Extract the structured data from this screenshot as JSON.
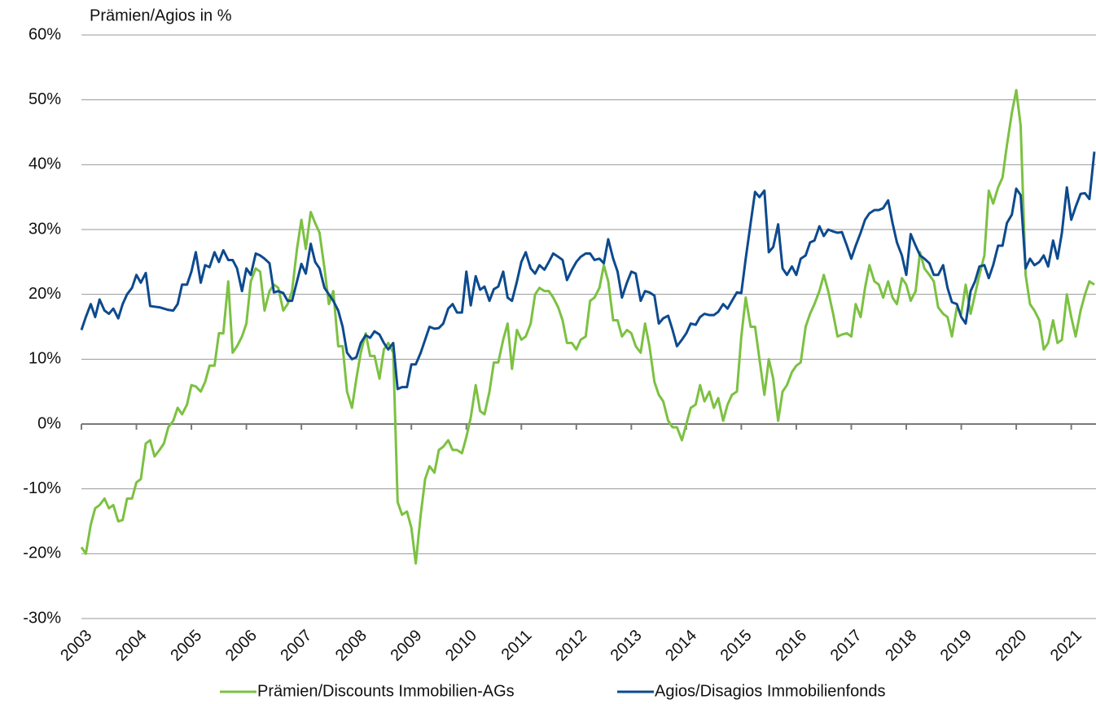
{
  "chart_data": {
    "type": "line",
    "title": "Prämien/Agios in %",
    "x": [
      2003,
      2003.08,
      2003.17,
      2003.25,
      2003.33,
      2003.42,
      2003.5,
      2003.58,
      2003.67,
      2003.75,
      2003.83,
      2003.92,
      2004,
      2004.08,
      2004.17,
      2004.25,
      2004.33,
      2004.42,
      2004.5,
      2004.58,
      2004.67,
      2004.75,
      2004.83,
      2004.92,
      2005,
      2005.08,
      2005.17,
      2005.25,
      2005.33,
      2005.42,
      2005.5,
      2005.58,
      2005.67,
      2005.75,
      2005.83,
      2005.92,
      2006,
      2006.08,
      2006.17,
      2006.25,
      2006.33,
      2006.42,
      2006.5,
      2006.58,
      2006.67,
      2006.75,
      2006.83,
      2006.92,
      2007,
      2007.08,
      2007.17,
      2007.25,
      2007.33,
      2007.42,
      2007.5,
      2007.58,
      2007.67,
      2007.75,
      2007.83,
      2007.92,
      2008,
      2008.08,
      2008.17,
      2008.25,
      2008.33,
      2008.42,
      2008.5,
      2008.58,
      2008.67,
      2008.75,
      2008.83,
      2008.92,
      2009,
      2009.08,
      2009.17,
      2009.25,
      2009.33,
      2009.42,
      2009.5,
      2009.58,
      2009.67,
      2009.75,
      2009.83,
      2009.92,
      2010,
      2010.08,
      2010.17,
      2010.25,
      2010.33,
      2010.42,
      2010.5,
      2010.58,
      2010.67,
      2010.75,
      2010.83,
      2010.92,
      2011,
      2011.08,
      2011.17,
      2011.25,
      2011.33,
      2011.42,
      2011.5,
      2011.58,
      2011.67,
      2011.75,
      2011.83,
      2011.92,
      2012,
      2012.08,
      2012.17,
      2012.25,
      2012.33,
      2012.42,
      2012.5,
      2012.58,
      2012.67,
      2012.75,
      2012.83,
      2012.92,
      2013,
      2013.08,
      2013.17,
      2013.25,
      2013.33,
      2013.42,
      2013.5,
      2013.58,
      2013.67,
      2013.75,
      2013.83,
      2013.92,
      2014,
      2014.08,
      2014.17,
      2014.25,
      2014.33,
      2014.42,
      2014.5,
      2014.58,
      2014.67,
      2014.75,
      2014.83,
      2014.92,
      2015,
      2015.08,
      2015.17,
      2015.25,
      2015.33,
      2015.42,
      2015.5,
      2015.58,
      2015.67,
      2015.75,
      2015.83,
      2015.92,
      2016,
      2016.08,
      2016.17,
      2016.25,
      2016.33,
      2016.42,
      2016.5,
      2016.58,
      2016.67,
      2016.75,
      2016.83,
      2016.92,
      2017,
      2017.08,
      2017.17,
      2017.25,
      2017.33,
      2017.42,
      2017.5,
      2017.58,
      2017.67,
      2017.75,
      2017.83,
      2017.92,
      2018,
      2018.08,
      2018.17,
      2018.25,
      2018.33,
      2018.42,
      2018.5,
      2018.58,
      2018.67,
      2018.75,
      2018.83,
      2018.92,
      2019,
      2019.08,
      2019.17,
      2019.25,
      2019.33,
      2019.42,
      2019.5,
      2019.58,
      2019.67,
      2019.75,
      2019.83,
      2019.92,
      2020,
      2020.08,
      2020.17,
      2020.25,
      2020.33,
      2020.42,
      2020.5,
      2020.58,
      2020.67,
      2020.75,
      2020.83,
      2020.92,
      2021,
      2021.08,
      2021.17,
      2021.25,
      2021.33,
      2021.42
    ],
    "series": [
      {
        "name": "Prämien/Discounts Immobilien-AGs",
        "color": "#7cc142",
        "values": [
          -19,
          -20,
          -15.5,
          -13,
          -12.5,
          -11.5,
          -13,
          -12.5,
          -15,
          -14.8,
          -11.5,
          -11.5,
          -9,
          -8.5,
          -3,
          -2.5,
          -5,
          -4,
          -3,
          -0.5,
          0.5,
          2.5,
          1.5,
          3,
          6,
          5.8,
          5,
          6.5,
          9,
          9,
          14,
          14,
          22,
          11,
          12,
          13.5,
          15.5,
          22,
          24,
          23.5,
          17.5,
          20.5,
          21.5,
          21,
          17.5,
          18.5,
          20.5,
          27,
          31.5,
          27,
          32.7,
          31,
          29.5,
          24,
          18.5,
          20.5,
          12,
          12,
          5,
          2.5,
          7,
          11,
          14,
          10.5,
          10.5,
          7,
          11.5,
          12.5,
          11,
          -12,
          -14,
          -13.5,
          -16,
          -21.5,
          -14,
          -8.5,
          -6.5,
          -7.5,
          -4,
          -3.5,
          -2.5,
          -4,
          -4,
          -4.5,
          -2,
          1,
          6,
          2,
          1.5,
          5,
          9.5,
          9.5,
          13,
          15.5,
          8.5,
          14.5,
          13,
          13.5,
          15.5,
          20,
          21,
          20.5,
          20.5,
          19.5,
          18,
          16,
          12.5,
          12.5,
          11.5,
          13,
          13.5,
          19,
          19.5,
          21,
          24.5,
          22,
          16,
          16,
          13.5,
          14.5,
          14,
          12,
          11,
          15.5,
          12,
          6.5,
          4.5,
          3.5,
          0.5,
          -0.5,
          -0.5,
          -2.5,
          0,
          2.5,
          3,
          6,
          3.5,
          5,
          2.5,
          4,
          0.5,
          3,
          4.5,
          5,
          13.5,
          19.5,
          15,
          15,
          10,
          4.5,
          10,
          7,
          0.5,
          5,
          6,
          8,
          9,
          9.5,
          15,
          17,
          18.5,
          20.5,
          23,
          20.5,
          17,
          13.5,
          13.8,
          14,
          13.5,
          18.5,
          16.5,
          21,
          24.5,
          22,
          21.5,
          19.5,
          22,
          19.5,
          18.5,
          22.5,
          21.5,
          19,
          20.5,
          26.5,
          24,
          23,
          22,
          18,
          17,
          16.5,
          13.5,
          18,
          17,
          21.5,
          17,
          20,
          23,
          26,
          36,
          34,
          36.5,
          38,
          43,
          48,
          51.5,
          46,
          23,
          18.5,
          17.5,
          16,
          11.5,
          12.5,
          16,
          12.5,
          13,
          20,
          16.5,
          13.5,
          17.5,
          20,
          22,
          21.5
        ]
      },
      {
        "name": "Agios/Disagios Immobilienfonds",
        "color": "#0d4a8e",
        "values": [
          14.5,
          16.5,
          18.5,
          16.5,
          19.2,
          17.5,
          17,
          17.8,
          16.3,
          18.5,
          20,
          21,
          23,
          21.8,
          23.3,
          18.2,
          18.1,
          18,
          17.8,
          17.6,
          17.5,
          18.5,
          21.5,
          21.5,
          23.5,
          26.5,
          21.8,
          24.5,
          24.2,
          26.5,
          25,
          26.8,
          25.3,
          25.3,
          24,
          20.5,
          24,
          23,
          26.3,
          26,
          25.5,
          24.8,
          20.3,
          20.5,
          20.2,
          19,
          19,
          22,
          24.7,
          23.2,
          27.8,
          25,
          24,
          21,
          20,
          19,
          17.5,
          15,
          11,
          10,
          10.3,
          12.5,
          13.7,
          13.3,
          14.3,
          13.8,
          12.5,
          11.5,
          12.5,
          5.4,
          5.7,
          5.7,
          9.2,
          9.2,
          11,
          13,
          15,
          14.7,
          14.8,
          15.5,
          17.8,
          18.5,
          17.2,
          17.2,
          23.5,
          18.3,
          22.8,
          20.7,
          21.2,
          19,
          20.8,
          21.2,
          23.5,
          19.5,
          19,
          22,
          25,
          26.5,
          24,
          23.2,
          24.5,
          23.8,
          25,
          26.3,
          25.8,
          25.3,
          22.2,
          23.8,
          25,
          25.8,
          26.3,
          26.3,
          25.3,
          25.5,
          24.8,
          28.5,
          25.5,
          23.5,
          19.5,
          21.8,
          23.5,
          23.2,
          19,
          20.5,
          20.3,
          19.8,
          15.5,
          16.3,
          16.7,
          14.5,
          12,
          13,
          14,
          15.5,
          15.3,
          16.5,
          17,
          16.8,
          16.8,
          17.3,
          18.5,
          17.8,
          19,
          20.3,
          20.2,
          25.5,
          31,
          35.8,
          35,
          36,
          26.5,
          27.3,
          30.8,
          24,
          23,
          24.3,
          23,
          25.5,
          26,
          28,
          28.3,
          30.5,
          29,
          30,
          29.7,
          29.5,
          29.6,
          27.5,
          25.5,
          27.5,
          29.5,
          31.5,
          32.5,
          33,
          33,
          33.3,
          34.5,
          31,
          28,
          26,
          23,
          29.3,
          27.5,
          26,
          25.5,
          24.8,
          23,
          23,
          24.5,
          21,
          18.8,
          18.5,
          16.5,
          15.5,
          20.5,
          22,
          24.3,
          24.5,
          22.5,
          24.5,
          27.5,
          27.5,
          31,
          32.3,
          36.3,
          35.3,
          24,
          25.5,
          24.5,
          25,
          26,
          24.3,
          28.3,
          25.5,
          29.5,
          36.5,
          31.5,
          33.5,
          35.5,
          35.6,
          34.7,
          42
        ]
      }
    ],
    "xlim": [
      2003,
      2021.45
    ],
    "xticks": [
      2003,
      2004,
      2005,
      2006,
      2007,
      2008,
      2009,
      2010,
      2011,
      2012,
      2013,
      2014,
      2015,
      2016,
      2017,
      2018,
      2019,
      2020,
      2021
    ],
    "ylim": [
      -30,
      60
    ],
    "yticks": [
      {
        "value": -30,
        "label": "-30%"
      },
      {
        "value": -20,
        "label": "-20%"
      },
      {
        "value": -10,
        "label": "-10%"
      },
      {
        "value": 0,
        "label": "0%"
      },
      {
        "value": 10,
        "label": "10%"
      },
      {
        "value": 20,
        "label": "20%"
      },
      {
        "value": 30,
        "label": "30%"
      },
      {
        "value": 40,
        "label": "40%"
      },
      {
        "value": 50,
        "label": "50%"
      },
      {
        "value": 60,
        "label": "60%"
      }
    ],
    "grid": true,
    "legend": "bottom"
  }
}
